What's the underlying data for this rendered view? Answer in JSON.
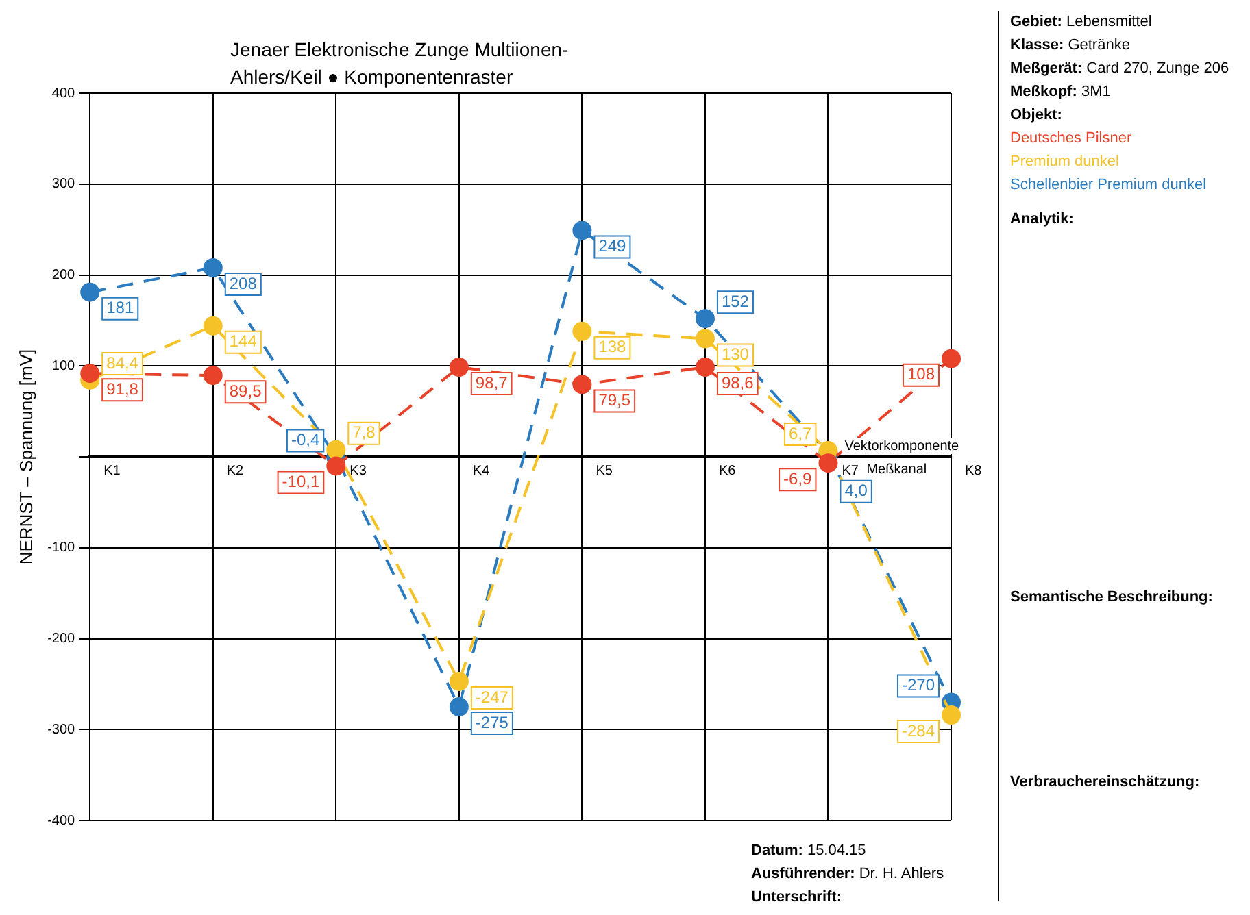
{
  "chart_data": {
    "type": "line",
    "title": "Jenaer Elektronische Zunge Multiionen-",
    "subtitle": "Ahlers/Keil ● Komponentenraster",
    "xlabel": "Meßkanal",
    "ylabel": "NERNST – Spannung [mV]",
    "categories": [
      "K1",
      "K2",
      "K3",
      "K4",
      "K5",
      "K6",
      "K7",
      "K8"
    ],
    "series": [
      {
        "name": "Deutsches Pilsner",
        "color": "#e8432a",
        "values": [
          91.8,
          89.5,
          -10.1,
          98.7,
          79.5,
          98.6,
          -6.9,
          108
        ],
        "value_labels": [
          "91,8",
          "89,5",
          "-10,1",
          "98,7",
          "79,5",
          "98,6",
          "-6,9",
          "108"
        ]
      },
      {
        "name": "Premium dunkel",
        "color": "#f5c228",
        "values": [
          84.4,
          144,
          7.8,
          -247,
          138,
          130,
          6.7,
          -284
        ],
        "value_labels": [
          "84,4",
          "144",
          "7,8",
          "-247",
          "138",
          "130",
          "6,7",
          "-284"
        ]
      },
      {
        "name": "Schellenbier Premium dunkel",
        "color": "#2b7bc0",
        "values": [
          181,
          208,
          -0.4,
          -275,
          249,
          152,
          4.0,
          -270
        ],
        "value_labels": [
          "181",
          "208",
          "-0,4",
          "-275",
          "249",
          "152",
          "4,0",
          "-270"
        ]
      }
    ],
    "ylim": [
      -400,
      400
    ],
    "yticks": [
      -400,
      -300,
      -200,
      -100,
      {
        "value": 0,
        "label": null
      },
      100,
      200,
      300,
      400
    ],
    "grid": true,
    "legend": "right",
    "marker": "circle",
    "line_style": "dashed",
    "annotations": [
      "Vektorkomponente",
      "Gebiet: Lebensmittel",
      "Klasse: Getränke",
      "Meßgerät: Card 270, Zunge 206",
      "Meßkopf: 3M1",
      "Objekt:",
      "Analytik:",
      "Semantische Beschreibung:",
      "Verbrauchereinschätzung:",
      "Datum: 15.04.15",
      "Ausführender: Dr. H. Ahlers",
      "Unterschrift:"
    ]
  }
}
